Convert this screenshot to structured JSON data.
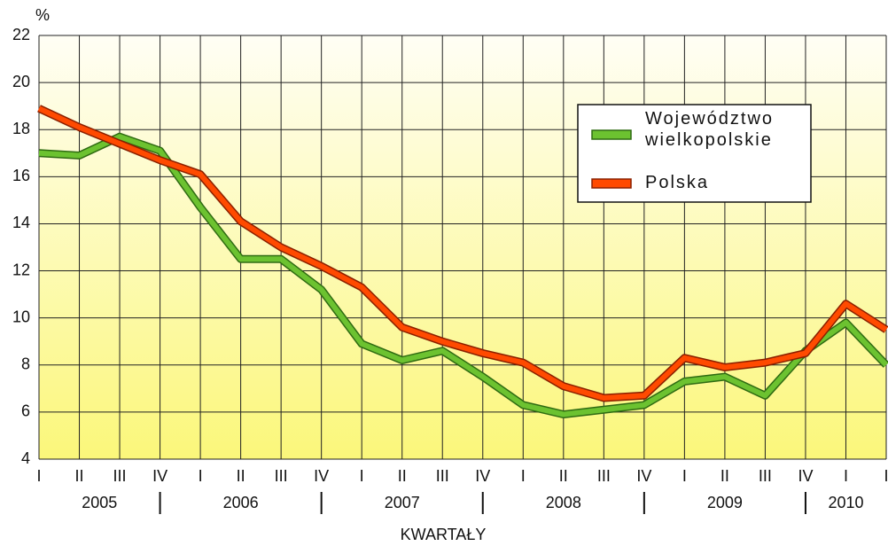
{
  "chart_data": {
    "type": "line",
    "y_unit": "%",
    "x_label": "KWARTAŁY",
    "categories": [
      "I",
      "II",
      "III",
      "IV",
      "I",
      "II",
      "III",
      "IV",
      "I",
      "II",
      "III",
      "IV",
      "I",
      "II",
      "III",
      "IV",
      "I",
      "II",
      "III",
      "IV",
      "I",
      "I"
    ],
    "years": [
      "2005",
      "2006",
      "2007",
      "2008",
      "2009",
      "2010"
    ],
    "series": [
      {
        "name": "Województwo wielkopolskie",
        "color": "#6cc230",
        "edge": "#2f6b12",
        "values": [
          17.0,
          16.9,
          17.7,
          17.1,
          14.7,
          12.5,
          12.5,
          11.2,
          8.9,
          8.2,
          8.6,
          7.5,
          6.3,
          5.9,
          6.1,
          6.3,
          7.3,
          7.5,
          6.7,
          8.6,
          9.8,
          8.0
        ]
      },
      {
        "name": "Polska",
        "color": "#ff4a00",
        "edge": "#8a2000",
        "values": [
          18.9,
          18.1,
          17.4,
          16.7,
          16.1,
          14.1,
          13.0,
          12.2,
          11.3,
          9.6,
          9.0,
          8.5,
          8.1,
          7.1,
          6.6,
          6.7,
          8.3,
          7.9,
          8.1,
          8.5,
          10.6,
          9.5
        ]
      }
    ],
    "ylim": [
      4,
      22
    ],
    "yticks": [
      4,
      6,
      8,
      10,
      12,
      14,
      16,
      18,
      20,
      22
    ],
    "grid": true
  }
}
